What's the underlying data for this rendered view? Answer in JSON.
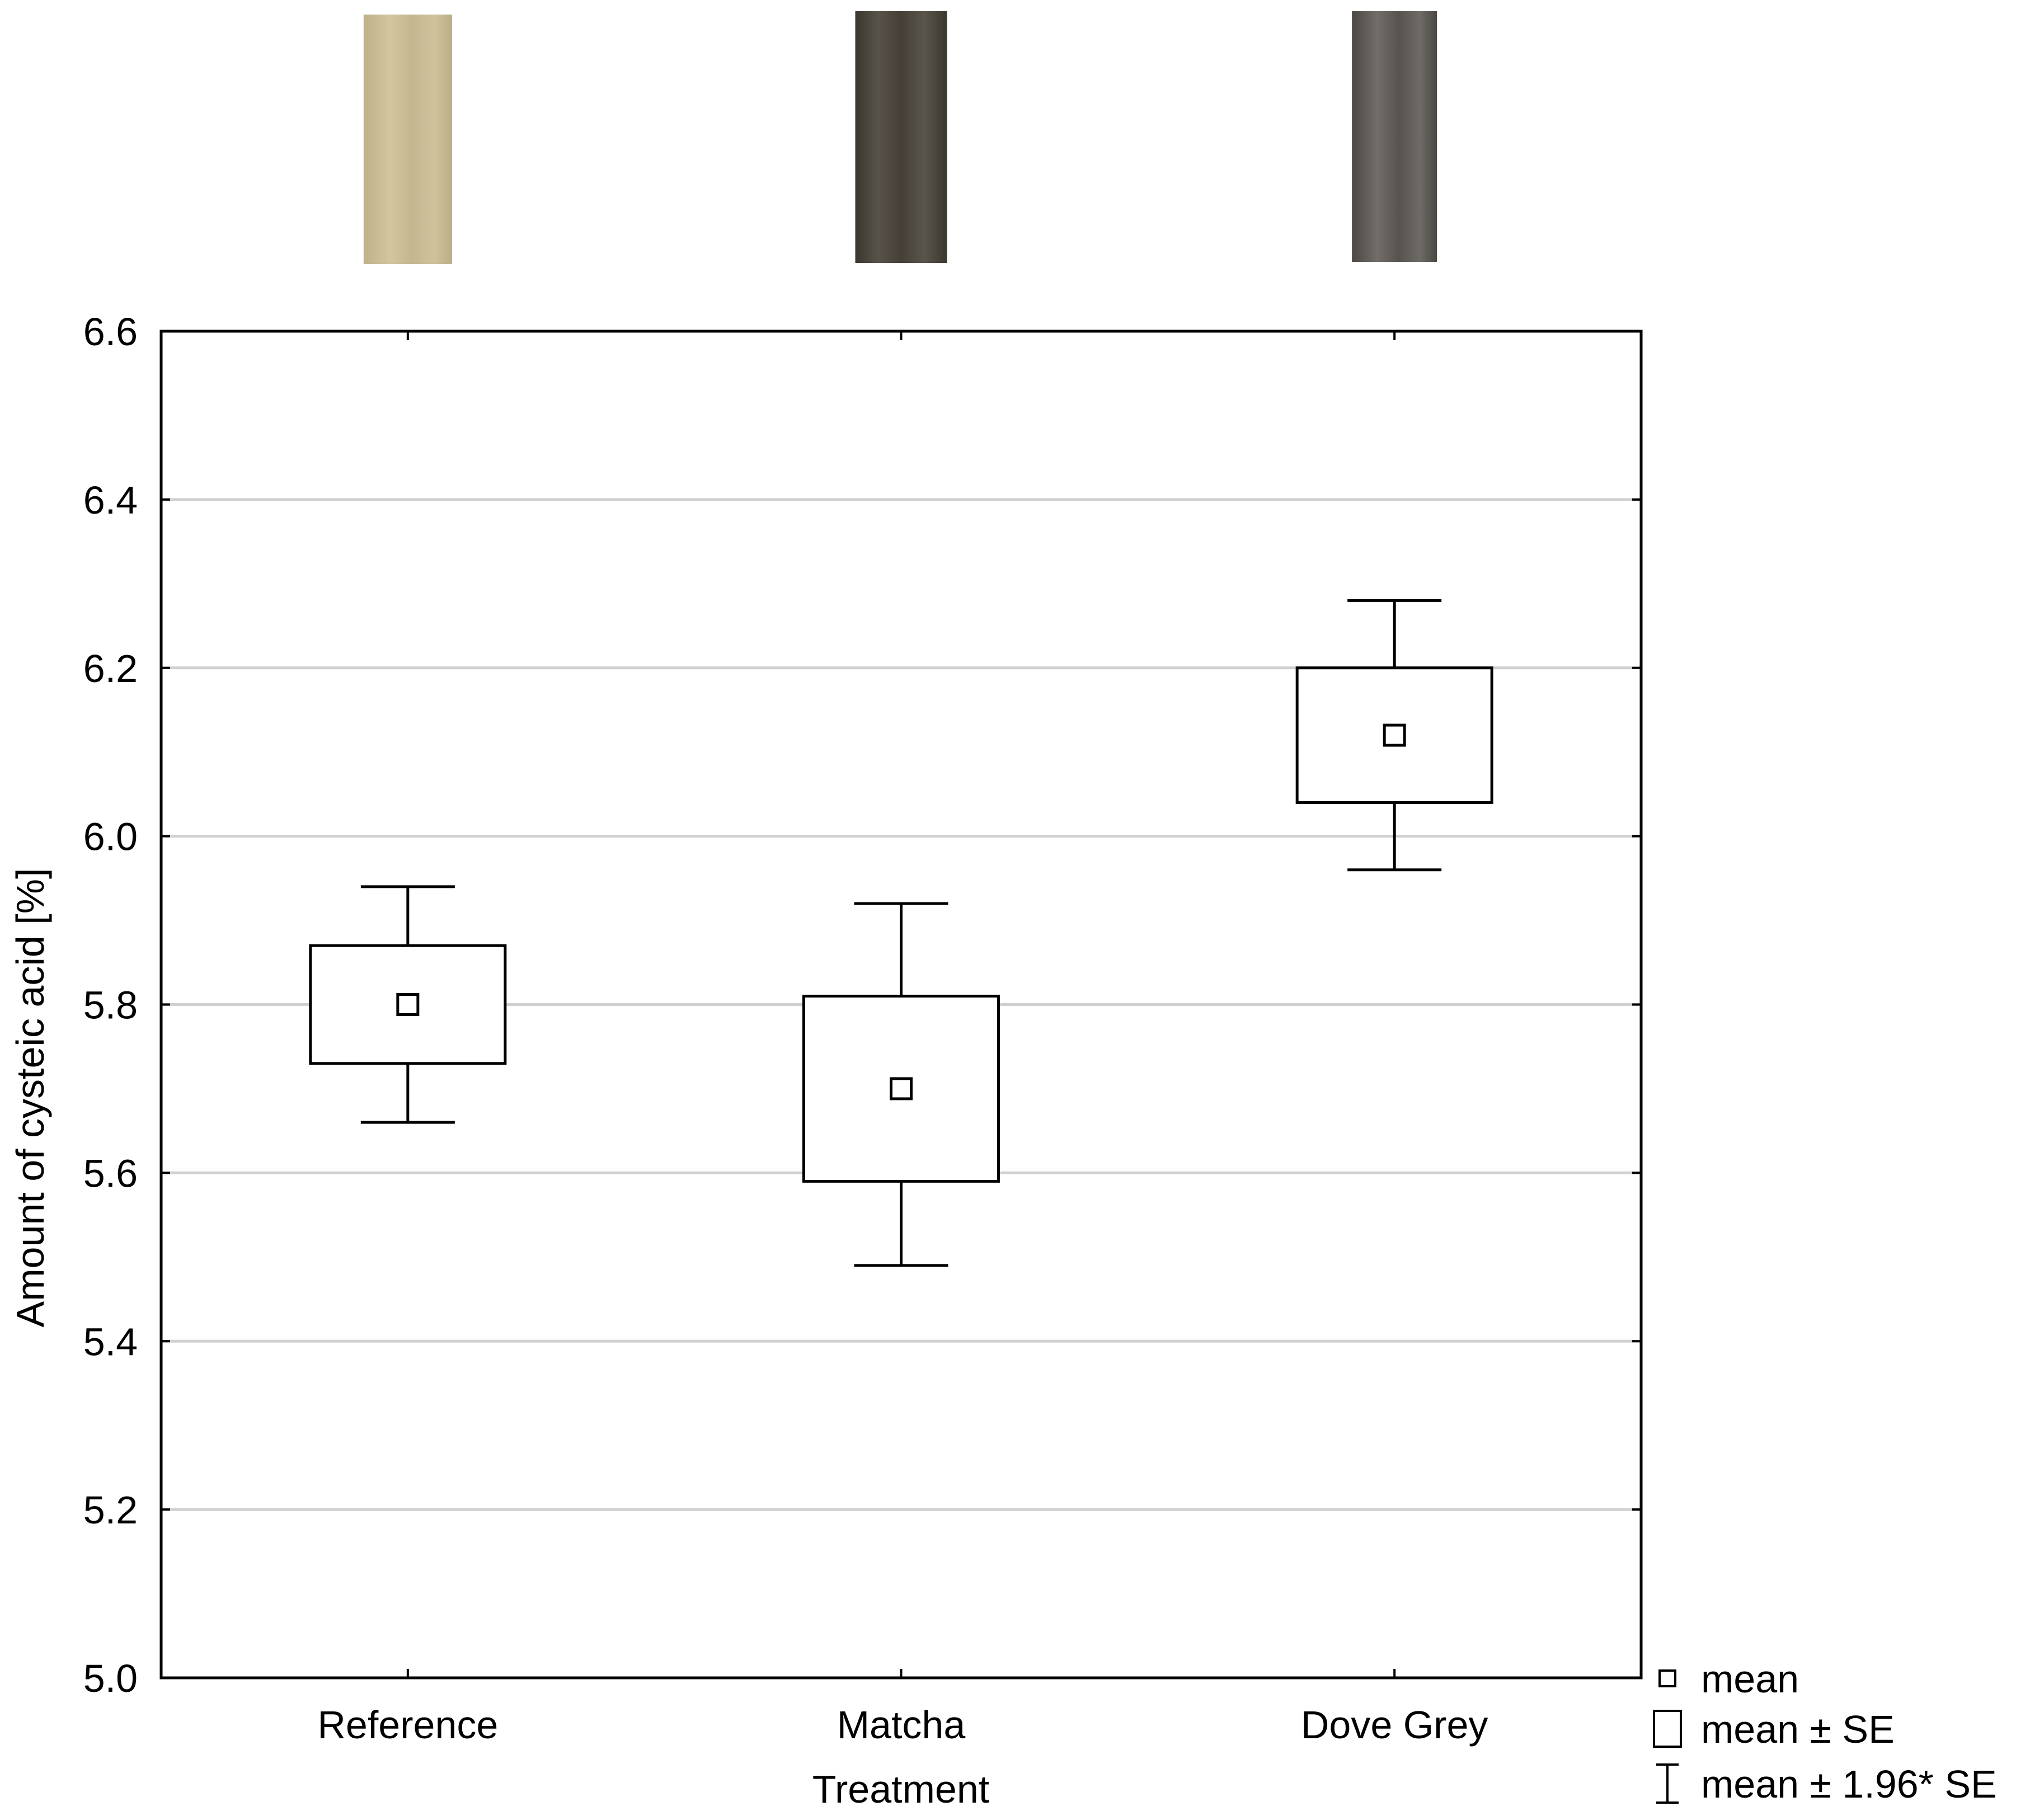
{
  "chart_data": {
    "type": "box",
    "xlabel": "Treatment",
    "ylabel": "Amount of cysteic acid [%]",
    "ylim": [
      5.0,
      6.6
    ],
    "yticks": [
      "5.0",
      "5.2",
      "5.4",
      "5.6",
      "5.8",
      "6.0",
      "6.2",
      "6.4",
      "6.6"
    ],
    "grid": true,
    "legend_position": "bottom-right",
    "categories": [
      "Reference",
      "Matcha",
      "Dove Grey"
    ],
    "series": [
      {
        "mean": 5.8,
        "se_low": 5.73,
        "se_high": 5.87,
        "ci_low": 5.66,
        "ci_high": 5.94
      },
      {
        "mean": 5.7,
        "se_low": 5.59,
        "se_high": 5.81,
        "ci_low": 5.49,
        "ci_high": 5.92
      },
      {
        "mean": 6.12,
        "se_low": 6.04,
        "se_high": 6.2,
        "ci_low": 5.96,
        "ci_high": 6.28
      }
    ],
    "swatch_colors": [
      "#c9bb94",
      "#4a463e",
      "#5e5a56"
    ],
    "legend": [
      "mean",
      "mean ± SE",
      "mean ± 1.96* SE"
    ]
  }
}
